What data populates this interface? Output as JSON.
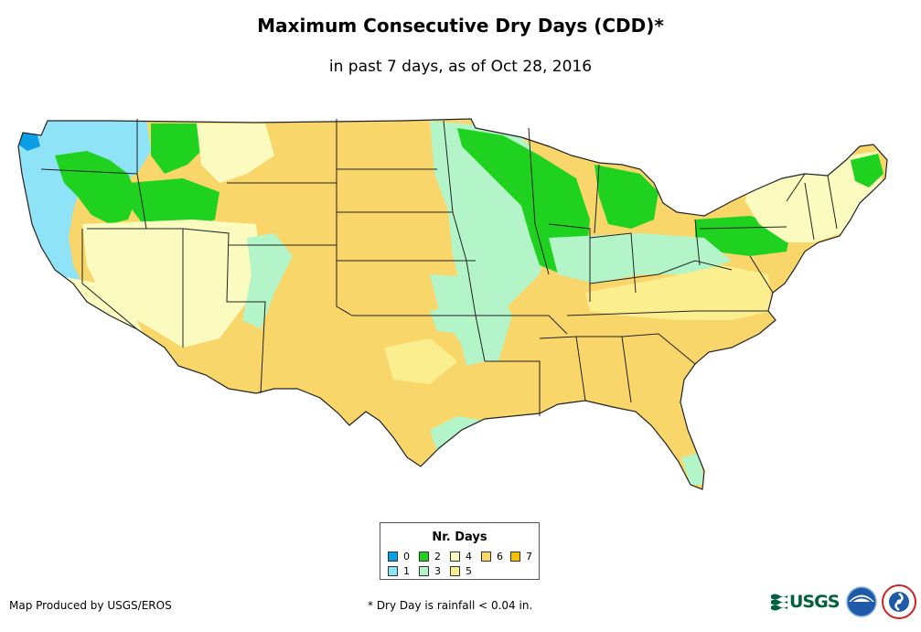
{
  "title": "Maximum Consecutive Dry Days (CDD)*",
  "subtitle": "in past 7 days, as of Oct 28, 2016",
  "legend": {
    "title": "Nr. Days",
    "items": [
      {
        "label": "0",
        "color": "#0a9ee6"
      },
      {
        "label": "1",
        "color": "#8fe3f7"
      },
      {
        "label": "2",
        "color": "#1fd21f"
      },
      {
        "label": "3",
        "color": "#b3f5c8"
      },
      {
        "label": "4",
        "color": "#fbfbc0"
      },
      {
        "label": "5",
        "color": "#fbee8f"
      },
      {
        "label": "6",
        "color": "#f8d66a"
      },
      {
        "label": "7",
        "color": "#f8c000"
      }
    ]
  },
  "credit": "Map Produced by USGS/EROS",
  "footnote": "* Dry Day is rainfall < 0.04 in.",
  "logos": {
    "usgs": "USGS",
    "noaa": "noaa-logo",
    "nws": "national-weather-service-logo"
  },
  "colors": {
    "state_border": "#222222"
  }
}
